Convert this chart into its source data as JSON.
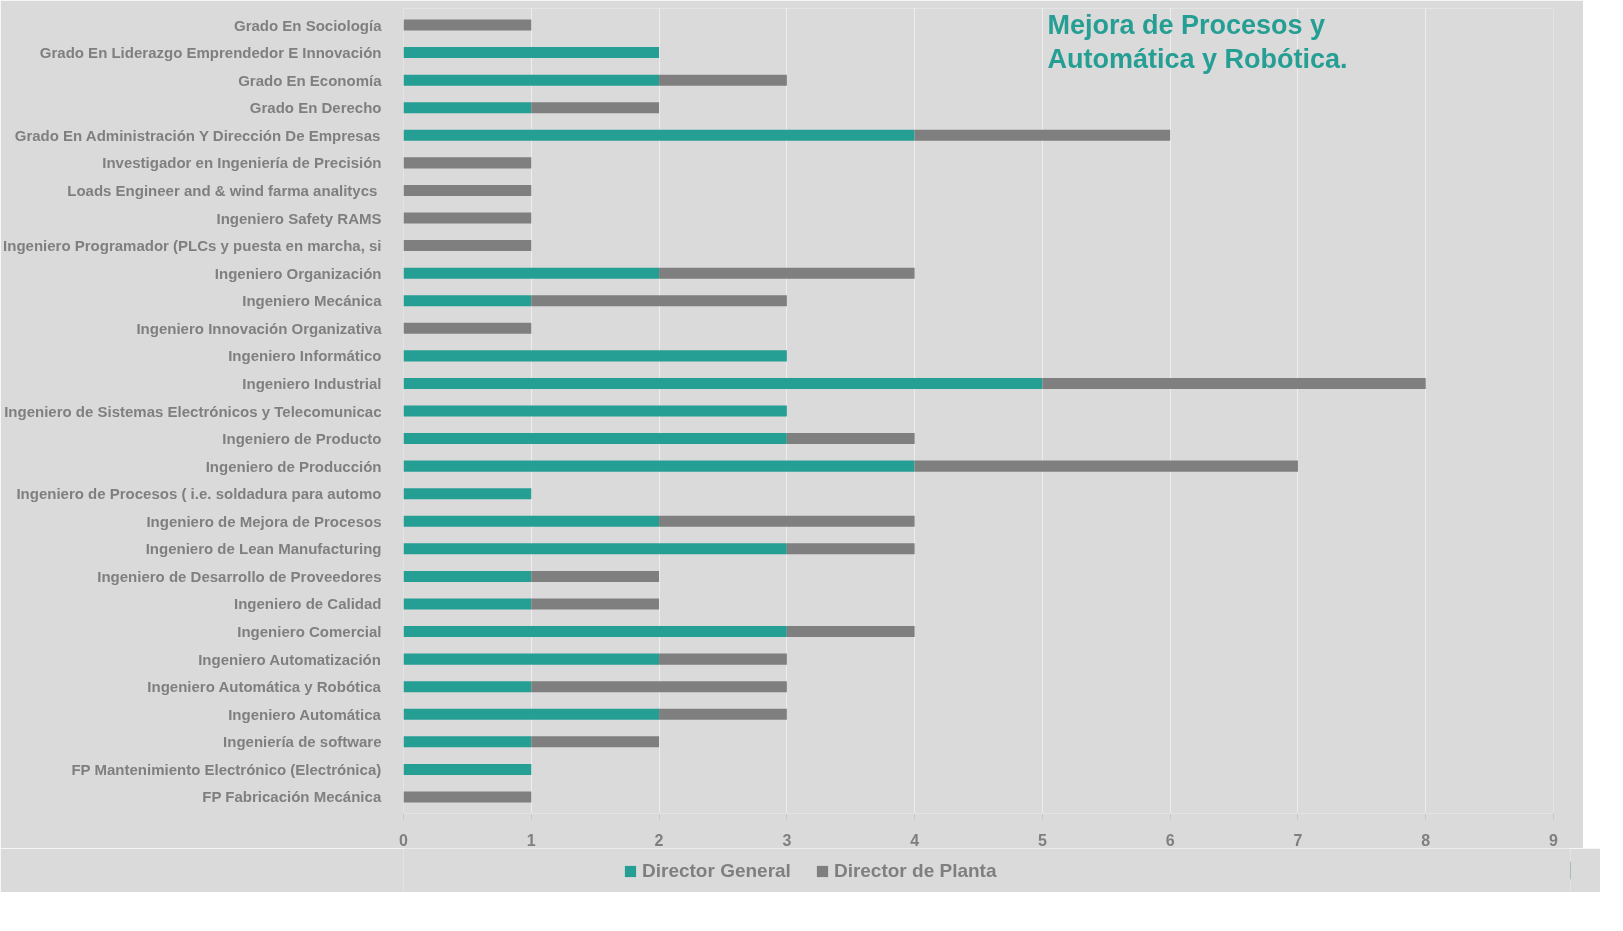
{
  "chart_data": {
    "type": "bar",
    "orientation": "horizontal",
    "stacked": true,
    "title": "Mejora de Procesos y Automática y Robótica.",
    "categories": [
      "Grado En Sociología",
      "Grado En Liderazgo Emprendedor E Innovación",
      "Grado En Economía",
      "Grado En Derecho",
      "Grado En Administración Y Dirección De Empresas",
      "Investigador en Ingeniería de Precisión",
      "Loads Engineer and & wind  farma analitycs",
      "Ingeniero Safety RAMS",
      "Ingeniero Programador (PLCs y puesta en marcha, si",
      "Ingeniero Organización",
      "Ingeniero Mecánica",
      "Ingeniero Innovación Organizativa",
      "Ingeniero Informático",
      "Ingeniero Industrial",
      "Ingeniero de Sistemas Electrónicos y Telecomunicac",
      "Ingeniero de Producto",
      "Ingeniero de Producción",
      "Ingeniero de Procesos ( i.e. soldadura para automo",
      "Ingeniero de Mejora de Procesos",
      "Ingeniero de Lean Manufacturing",
      "Ingeniero de Desarrollo de Proveedores",
      "Ingeniero de Calidad",
      "Ingeniero Comercial",
      "Ingeniero Automatización",
      "Ingeniero Automática y Robótica",
      "Ingeniero Automática",
      "Ingeniería de software",
      "FP Mantenimiento Electrónico (Electrónica)",
      "FP Fabricación Mecánica"
    ],
    "series": [
      {
        "name": "Director General",
        "color": "#259e94",
        "values": [
          null,
          2,
          2,
          1,
          4,
          null,
          null,
          null,
          null,
          2,
          1,
          null,
          3,
          5,
          3,
          3,
          4,
          1,
          2,
          3,
          1,
          1,
          3,
          2,
          1,
          2,
          1,
          1,
          null
        ]
      },
      {
        "name": "Director de Planta",
        "color": "#7f7f7f",
        "values": [
          1,
          null,
          1,
          1,
          2,
          1,
          1,
          1,
          1,
          2,
          2,
          1,
          null,
          3,
          null,
          1,
          3,
          null,
          2,
          1,
          1,
          1,
          1,
          1,
          2,
          1,
          1,
          null,
          1
        ]
      }
    ],
    "xlim": [
      0,
      9
    ],
    "xticks": [
      0,
      1,
      2,
      3,
      4,
      5,
      6,
      7,
      8,
      9
    ],
    "grid": "x",
    "legend": "bottom"
  }
}
